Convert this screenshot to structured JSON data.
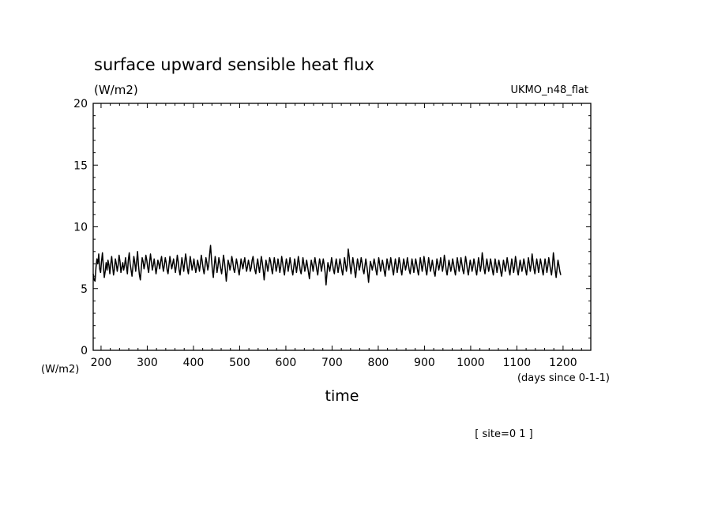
{
  "chart_data": {
    "type": "line",
    "title": "surface upward sensible heat flux",
    "ylabel": "(W/m2)",
    "model_label": "UKMO_n48_flat",
    "xlabel": "time",
    "x_units": "(days since 0-1-1)",
    "y_units_corner": "(W/m2)",
    "footnote": "[ site=0 1 ]",
    "xlim": [
      183,
      1260
    ],
    "ylim": [
      0,
      20
    ],
    "xticks": [
      200,
      300,
      400,
      500,
      600,
      700,
      800,
      900,
      1000,
      1100,
      1200
    ],
    "yticks": [
      0,
      5,
      10,
      15,
      20
    ],
    "grid": false,
    "series": [
      {
        "color": "#000000",
        "x_start": 183,
        "x_step": 2,
        "values": [
          6.2,
          5.7,
          5.6,
          6.7,
          7.4,
          7.0,
          7.8,
          6.6,
          6.3,
          7.2,
          7.9,
          6.8,
          5.9,
          6.4,
          7.1,
          6.5,
          7.3,
          6.9,
          6.2,
          7.0,
          7.6,
          6.8,
          6.1,
          6.6,
          7.4,
          7.0,
          6.4,
          6.9,
          7.7,
          7.2,
          6.3,
          6.7,
          7.1,
          6.5,
          6.9,
          7.5,
          6.8,
          6.2,
          7.3,
          7.9,
          7.0,
          6.5,
          6.0,
          6.8,
          7.6,
          7.1,
          6.4,
          7.2,
          8.0,
          6.9,
          6.1,
          5.7,
          6.6,
          7.5,
          7.2,
          6.6,
          7.0,
          7.7,
          7.3,
          6.7,
          6.3,
          7.1,
          7.8,
          7.2,
          6.5,
          6.9,
          7.4,
          6.8,
          6.2,
          6.7,
          7.3,
          7.0,
          6.6,
          7.2,
          7.6,
          6.9,
          6.4,
          6.9,
          7.5,
          7.1,
          6.5,
          6.2,
          6.9,
          7.6,
          7.1,
          6.6,
          7.0,
          7.4,
          6.8,
          6.3,
          6.9,
          7.7,
          7.2,
          6.5,
          6.1,
          6.8,
          7.5,
          7.0,
          6.4,
          7.1,
          7.8,
          7.3,
          6.6,
          6.2,
          6.9,
          7.6,
          7.1,
          6.5,
          6.9,
          7.4,
          6.8,
          6.3,
          6.7,
          7.3,
          6.9,
          6.4,
          7.0,
          7.7,
          7.2,
          6.6,
          6.2,
          6.8,
          7.5,
          7.1,
          6.5,
          6.9,
          7.8,
          8.5,
          7.4,
          6.5,
          5.9,
          6.8,
          7.6,
          7.0,
          6.3,
          6.8,
          7.5,
          7.1,
          6.6,
          6.2,
          6.9,
          7.7,
          7.2,
          6.5,
          5.6,
          6.4,
          7.3,
          7.0,
          6.5,
          6.9,
          7.6,
          7.2,
          6.6,
          6.3,
          6.8,
          7.4,
          7.0,
          6.5,
          6.1,
          6.7,
          7.4,
          7.0,
          6.6,
          7.1,
          7.5,
          6.9,
          6.4,
          6.8,
          7.3,
          6.9,
          6.4,
          6.7,
          7.3,
          7.6,
          7.0,
          6.5,
          6.2,
          6.9,
          7.4,
          6.8,
          6.3,
          7.0,
          7.6,
          7.1,
          6.5,
          5.7,
          6.5,
          7.3,
          6.9,
          6.4,
          6.9,
          7.5,
          7.2,
          6.6,
          6.2,
          6.9,
          7.5,
          7.0,
          6.4,
          6.8,
          7.4,
          6.9,
          6.3,
          6.8,
          7.6,
          7.1,
          6.5,
          6.1,
          6.8,
          7.4,
          7.0,
          6.4,
          6.9,
          7.5,
          7.0,
          6.5,
          6.1,
          6.7,
          7.4,
          6.9,
          6.3,
          6.9,
          7.6,
          7.1,
          6.5,
          6.2,
          6.8,
          7.5,
          7.0,
          6.4,
          6.8,
          7.3,
          6.8,
          6.3,
          5.8,
          6.6,
          7.3,
          6.9,
          6.4,
          7.0,
          7.5,
          7.0,
          6.5,
          6.1,
          6.8,
          7.4,
          7.0,
          6.4,
          6.9,
          7.4,
          6.9,
          6.3,
          5.3,
          6.2,
          7.1,
          6.8,
          6.4,
          6.9,
          7.5,
          7.0,
          6.5,
          6.2,
          6.9,
          7.4,
          6.9,
          6.3,
          6.8,
          7.4,
          7.0,
          6.5,
          6.1,
          6.8,
          7.5,
          7.0,
          6.4,
          6.9,
          8.2,
          7.6,
          6.8,
          6.2,
          6.9,
          7.5,
          7.0,
          6.4,
          5.9,
          6.7,
          7.4,
          7.0,
          6.5,
          6.9,
          7.5,
          7.1,
          6.5,
          6.2,
          6.8,
          7.4,
          6.9,
          6.3,
          5.5,
          6.4,
          7.2,
          6.9,
          6.5,
          6.9,
          7.4,
          7.0,
          6.5,
          6.1,
          6.8,
          7.5,
          7.0,
          6.4,
          6.8,
          7.3,
          6.9,
          6.4,
          6.0,
          6.7,
          7.4,
          7.0,
          6.5,
          6.9,
          7.5,
          7.0,
          6.5,
          6.1,
          6.8,
          7.4,
          6.9,
          6.3,
          6.8,
          7.5,
          7.1,
          6.5,
          6.1,
          6.8,
          7.4,
          7.0,
          6.5,
          6.9,
          7.5,
          7.0,
          6.5,
          6.2,
          6.8,
          7.4,
          6.9,
          6.3,
          6.8,
          7.4,
          7.0,
          6.5,
          6.1,
          6.8,
          7.5,
          7.0,
          6.4,
          6.9,
          7.6,
          7.1,
          6.5,
          6.1,
          6.8,
          7.5,
          7.0,
          6.4,
          6.8,
          7.3,
          6.8,
          6.3,
          6.0,
          6.7,
          7.4,
          7.0,
          6.5,
          6.9,
          7.5,
          7.0,
          6.4,
          6.9,
          7.7,
          7.2,
          6.5,
          6.1,
          6.7,
          7.3,
          6.9,
          6.4,
          6.8,
          7.4,
          7.0,
          6.5,
          6.1,
          6.8,
          7.5,
          7.0,
          6.4,
          6.9,
          7.5,
          7.0,
          6.5,
          6.2,
          6.9,
          7.6,
          7.1,
          6.5,
          6.1,
          6.7,
          7.3,
          6.9,
          6.4,
          6.8,
          7.4,
          7.0,
          6.5,
          6.1,
          6.8,
          7.5,
          7.0,
          6.4,
          6.9,
          7.9,
          7.3,
          6.6,
          6.2,
          6.8,
          7.4,
          6.9,
          6.4,
          6.8,
          7.4,
          7.0,
          6.5,
          6.1,
          6.8,
          7.4,
          6.9,
          6.3,
          6.8,
          7.3,
          6.9,
          6.4,
          6.0,
          6.6,
          7.3,
          6.9,
          6.4,
          6.9,
          7.5,
          7.0,
          6.5,
          6.1,
          6.8,
          7.4,
          6.9,
          6.3,
          6.8,
          7.6,
          7.1,
          6.5,
          6.1,
          6.7,
          7.3,
          6.9,
          6.4,
          6.8,
          7.4,
          7.0,
          6.5,
          6.1,
          6.8,
          7.5,
          7.0,
          6.4,
          6.9,
          7.8,
          7.2,
          6.6,
          6.2,
          6.8,
          7.4,
          6.9,
          6.3,
          6.8,
          7.4,
          7.0,
          6.5,
          6.1,
          6.8,
          7.4,
          6.9,
          6.3,
          6.8,
          7.5,
          7.0,
          6.5,
          6.1,
          6.8,
          7.9,
          7.2,
          6.5,
          5.9,
          6.6,
          7.3,
          6.9,
          6.4,
          6.1
        ]
      }
    ]
  }
}
